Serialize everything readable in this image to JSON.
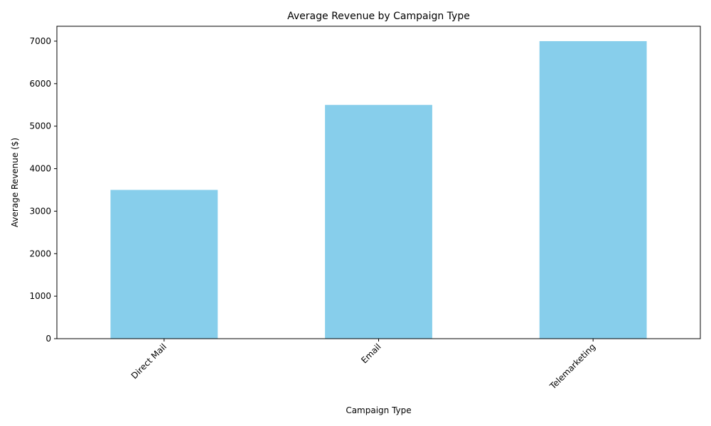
{
  "chart_data": {
    "type": "bar",
    "title": "Average Revenue by Campaign Type",
    "xlabel": "Campaign Type",
    "ylabel": "Average Revenue ($)",
    "categories": [
      "Direct Mail",
      "Email",
      "Telemarketing"
    ],
    "values": [
      3500,
      5500,
      7000
    ],
    "ylim": [
      0,
      7350
    ],
    "yticks": [
      0,
      1000,
      2000,
      3000,
      4000,
      5000,
      6000,
      7000
    ],
    "bar_color": "#87ceeb",
    "grid": false,
    "legend": "none"
  }
}
